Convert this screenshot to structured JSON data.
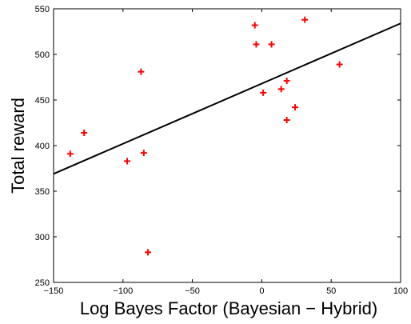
{
  "chart_data": {
    "type": "scatter",
    "title": "",
    "xlabel": "Log Bayes Factor (Bayesian − Hybrid)",
    "ylabel": "Total reward",
    "xlim": [
      -150,
      100
    ],
    "ylim": [
      250,
      550
    ],
    "xticks": [
      -150,
      -100,
      -50,
      0,
      50,
      100
    ],
    "yticks": [
      250,
      300,
      350,
      400,
      450,
      500,
      550
    ],
    "xtick_labels": [
      "−150",
      "−100",
      "−50",
      "0",
      "50",
      "100"
    ],
    "ytick_labels": [
      "250",
      "300",
      "350",
      "400",
      "450",
      "500",
      "550"
    ],
    "grid": false,
    "marker": "+",
    "marker_color": "#ff0000",
    "line_color": "#000000",
    "series": [
      {
        "points": [
          {
            "x": -138,
            "y": 391
          },
          {
            "x": -128,
            "y": 414
          },
          {
            "x": -97,
            "y": 383
          },
          {
            "x": -87,
            "y": 481
          },
          {
            "x": -85,
            "y": 392
          },
          {
            "x": -82,
            "y": 283
          },
          {
            "x": -5,
            "y": 532
          },
          {
            "x": -4,
            "y": 511
          },
          {
            "x": 1,
            "y": 458
          },
          {
            "x": 7,
            "y": 511
          },
          {
            "x": 14,
            "y": 462
          },
          {
            "x": 18,
            "y": 471
          },
          {
            "x": 18,
            "y": 428
          },
          {
            "x": 24,
            "y": 442
          },
          {
            "x": 31,
            "y": 538
          },
          {
            "x": 56,
            "y": 489
          }
        ]
      }
    ],
    "fit_line": {
      "x": [
        -150,
        100
      ],
      "y": [
        369,
        534
      ]
    }
  }
}
